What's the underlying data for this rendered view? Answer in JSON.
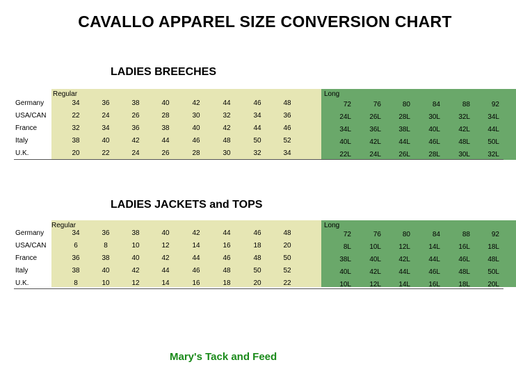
{
  "title": "CAVALLO APPAREL SIZE CONVERSION CHART",
  "sections": [
    {
      "title": "LADIES BREECHES",
      "regular_label": "Regular",
      "long_label": "Long",
      "rows": [
        {
          "country": "Germany",
          "regular": [
            "34",
            "36",
            "38",
            "40",
            "42",
            "44",
            "46",
            "48"
          ],
          "long": [
            "72",
            "76",
            "80",
            "84",
            "88",
            "92"
          ]
        },
        {
          "country": "USA/CAN",
          "regular": [
            "22",
            "24",
            "26",
            "28",
            "30",
            "32",
            "34",
            "36"
          ],
          "long": [
            "24L",
            "26L",
            "28L",
            "30L",
            "32L",
            "34L"
          ]
        },
        {
          "country": "France",
          "regular": [
            "32",
            "34",
            "36",
            "38",
            "40",
            "42",
            "44",
            "46"
          ],
          "long": [
            "34L",
            "36L",
            "38L",
            "40L",
            "42L",
            "44L"
          ]
        },
        {
          "country": "Italy",
          "regular": [
            "38",
            "40",
            "42",
            "44",
            "46",
            "48",
            "50",
            "52"
          ],
          "long": [
            "40L",
            "42L",
            "44L",
            "46L",
            "48L",
            "50L"
          ]
        },
        {
          "country": "U.K.",
          "regular": [
            "20",
            "22",
            "24",
            "26",
            "28",
            "30",
            "32",
            "34"
          ],
          "long": [
            "22L",
            "24L",
            "26L",
            "28L",
            "30L",
            "32L"
          ]
        }
      ]
    },
    {
      "title": "LADIES JACKETS and TOPS",
      "regular_label": "Regular",
      "long_label": "Long",
      "rows": [
        {
          "country": "Germany",
          "regular": [
            "34",
            "36",
            "38",
            "40",
            "42",
            "44",
            "46",
            "48"
          ],
          "long": [
            "72",
            "76",
            "80",
            "84",
            "88",
            "92"
          ]
        },
        {
          "country": "USA/CAN",
          "regular": [
            "6",
            "8",
            "10",
            "12",
            "14",
            "16",
            "18",
            "20"
          ],
          "long": [
            "8L",
            "10L",
            "12L",
            "14L",
            "16L",
            "18L"
          ]
        },
        {
          "country": "France",
          "regular": [
            "36",
            "38",
            "40",
            "42",
            "44",
            "46",
            "48",
            "50"
          ],
          "long": [
            "38L",
            "40L",
            "42L",
            "44L",
            "46L",
            "48L"
          ]
        },
        {
          "country": "Italy",
          "regular": [
            "38",
            "40",
            "42",
            "44",
            "46",
            "48",
            "50",
            "52"
          ],
          "long": [
            "40L",
            "42L",
            "44L",
            "46L",
            "48L",
            "50L"
          ]
        },
        {
          "country": "U.K.",
          "regular": [
            "8",
            "10",
            "12",
            "14",
            "16",
            "18",
            "20",
            "22"
          ],
          "long": [
            "10L",
            "12L",
            "14L",
            "16L",
            "18L",
            "20L"
          ]
        }
      ]
    }
  ],
  "footer": "Mary's Tack and Feed",
  "colors": {
    "regular_band": "#e6e6b4",
    "long_band": "#6aa86a",
    "footer_text": "#1a8a1a"
  }
}
